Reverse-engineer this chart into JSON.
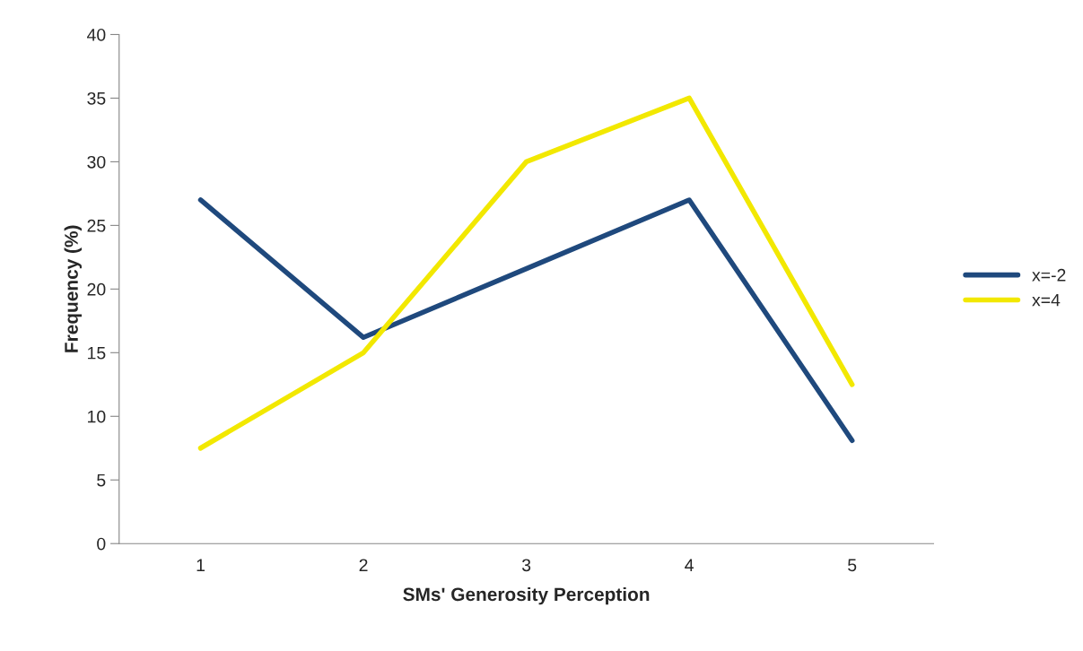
{
  "chart_data": {
    "type": "line",
    "xlabel": "SMs' Generosity Perception",
    "ylabel": "Frequency (%)",
    "categories": [
      "1",
      "2",
      "3",
      "4",
      "5"
    ],
    "series": [
      {
        "name": "x=-2",
        "color": "#1f497d",
        "values": [
          27.0,
          16.2,
          21.6,
          27.0,
          8.1
        ]
      },
      {
        "name": "x=4",
        "color": "#f2e800",
        "values": [
          7.5,
          15.0,
          30.0,
          35.0,
          12.5
        ]
      }
    ],
    "ylim": [
      0,
      40
    ],
    "yticks": [
      0,
      5,
      10,
      15,
      20,
      25,
      30,
      35,
      40
    ],
    "grid": false,
    "legend": "right",
    "marker": "none",
    "line_style": "solid"
  }
}
